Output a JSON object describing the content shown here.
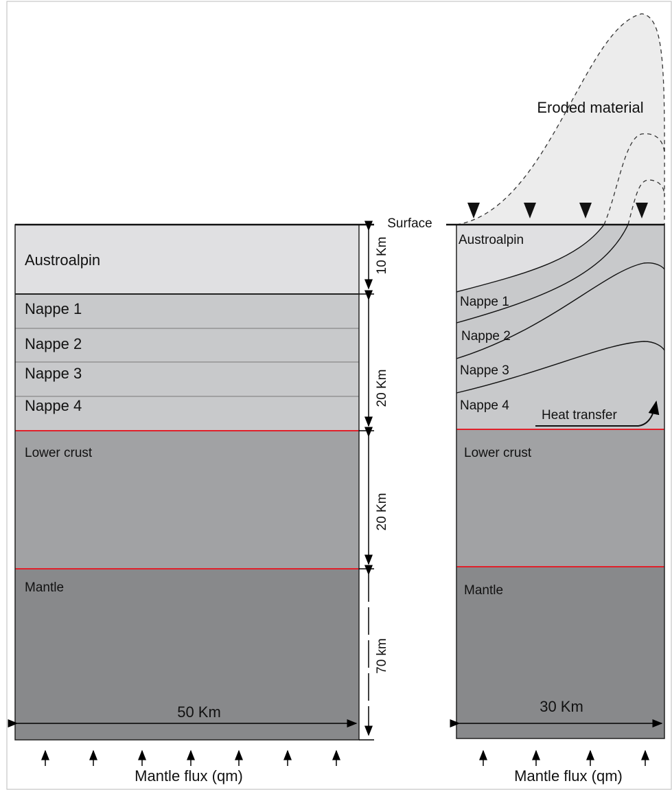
{
  "left_panel": {
    "layers": [
      "Austroalpin",
      "Nappe 1",
      "Nappe 2",
      "Nappe 3",
      "Nappe 4",
      "Lower crust",
      "Mantle"
    ],
    "thicknesses": [
      "10 Km",
      "20 Km",
      "20 Km",
      "70 km"
    ],
    "width": "50 Km",
    "flux": "Mantle flux (qm)"
  },
  "surface": "Surface",
  "right_panel": {
    "eroded": "Eroded material",
    "layers": [
      "Austroalpin",
      "Nappe 1",
      "Nappe 2",
      "Nappe 3",
      "Nappe 4",
      "Lower crust",
      "Mantle"
    ],
    "heat": "Heat transfer",
    "width": "30 Km",
    "flux": "Mantle flux (qm)"
  }
}
